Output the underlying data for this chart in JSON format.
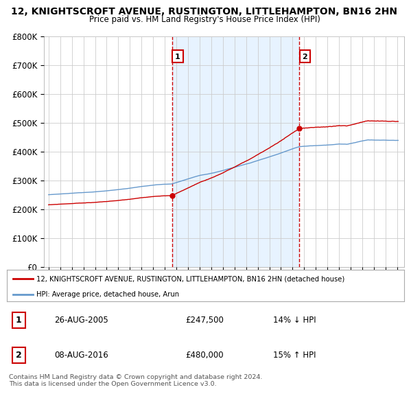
{
  "title": "12, KNIGHTSCROFT AVENUE, RUSTINGTON, LITTLEHAMPTON, BN16 2HN",
  "subtitle": "Price paid vs. HM Land Registry's House Price Index (HPI)",
  "ylim": [
    0,
    800000
  ],
  "yticks": [
    0,
    100000,
    200000,
    300000,
    400000,
    500000,
    600000,
    700000,
    800000
  ],
  "ytick_labels": [
    "£0",
    "£100K",
    "£200K",
    "£300K",
    "£400K",
    "£500K",
    "£600K",
    "£700K",
    "£800K"
  ],
  "purchase1_year": 2005.62,
  "purchase1_price": 247500,
  "purchase2_year": 2016.58,
  "purchase2_price": 480000,
  "red_line_color": "#cc0000",
  "blue_line_color": "#6699cc",
  "shade_color": "#ddeeff",
  "background_color": "#ffffff",
  "grid_color": "#cccccc",
  "legend_label_red": "12, KNIGHTSCROFT AVENUE, RUSTINGTON, LITTLEHAMPTON, BN16 2HN (detached house)",
  "legend_label_blue": "HPI: Average price, detached house, Arun",
  "annotation1_label": "1",
  "annotation1_date": "26-AUG-2005",
  "annotation1_price": "£247,500",
  "annotation1_hpi": "14% ↓ HPI",
  "annotation2_label": "2",
  "annotation2_date": "08-AUG-2016",
  "annotation2_price": "£480,000",
  "annotation2_hpi": "15% ↑ HPI",
  "footer": "Contains HM Land Registry data © Crown copyright and database right 2024.\nThis data is licensed under the Open Government Licence v3.0."
}
